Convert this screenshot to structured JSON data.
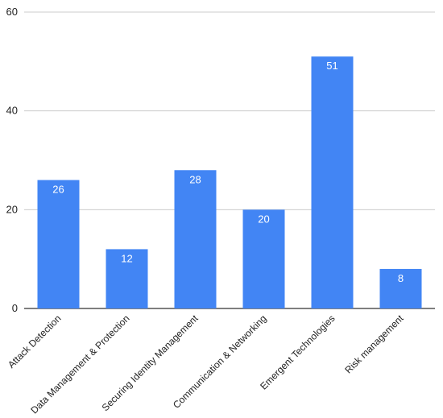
{
  "chart_data": {
    "type": "bar",
    "title": "",
    "xlabel": "",
    "ylabel": "",
    "categories": [
      "Attack Detection",
      "Data Management & Protection",
      "Securing Identity Management",
      "Communication & Networking",
      "Emergent Technologies",
      "Risk management"
    ],
    "values": [
      26,
      12,
      28,
      20,
      51,
      8
    ],
    "data_labels": [
      "26",
      "12",
      "28",
      "20",
      "51",
      "8"
    ],
    "ylim": [
      0,
      60
    ],
    "yticks": [
      0,
      20,
      40,
      60
    ],
    "ytick_labels": [
      "0",
      "20",
      "40",
      "60"
    ],
    "grid": true,
    "legend": "none",
    "colors": {
      "bar": "#4285f4",
      "grid": "#cccccc",
      "baseline": "#333333",
      "text": "#222222",
      "data_label": "#ffffff"
    }
  }
}
